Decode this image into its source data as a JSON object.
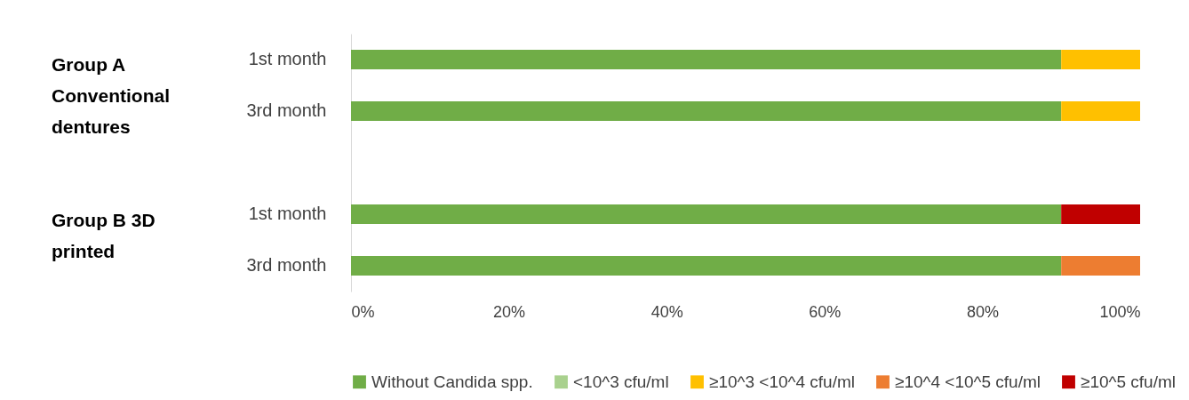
{
  "chart_data": {
    "type": "bar",
    "orientation": "horizontal",
    "stacked": true,
    "categories": [
      "1st month",
      "3rd month",
      null,
      "1st month",
      "3rd month"
    ],
    "series": [
      {
        "name": "Without Candida spp.",
        "color": "#70ad47",
        "values": [
          90,
          90,
          null,
          90,
          90
        ]
      },
      {
        "name": "<10^3 cfu/ml",
        "color": "#a9d18e",
        "values": [
          0,
          0,
          null,
          0,
          0
        ]
      },
      {
        "name": "≥10^3 <10^4 cfu/ml",
        "color": "#ffc000",
        "values": [
          10,
          10,
          null,
          0,
          0
        ]
      },
      {
        "name": "≥10^4 <10^5 cfu/ml",
        "color": "#ed7d31",
        "values": [
          0,
          0,
          null,
          0,
          10
        ]
      },
      {
        "name": "≥10^5 cfu/ml",
        "color": "#c00000",
        "values": [
          0,
          0,
          null,
          10,
          0
        ]
      }
    ],
    "xlim": [
      0,
      100
    ],
    "xticks": [
      {
        "value": 0,
        "label": "0%"
      },
      {
        "value": 20,
        "label": "20%"
      },
      {
        "value": 40,
        "label": "40%"
      },
      {
        "value": 60,
        "label": "60%"
      },
      {
        "value": 80,
        "label": "80%"
      },
      {
        "value": 100,
        "label": "100%"
      }
    ],
    "annotations": [
      "Group A Conventional dentures",
      "Group B 3D printed"
    ],
    "legend": "bottom",
    "grid": false
  }
}
